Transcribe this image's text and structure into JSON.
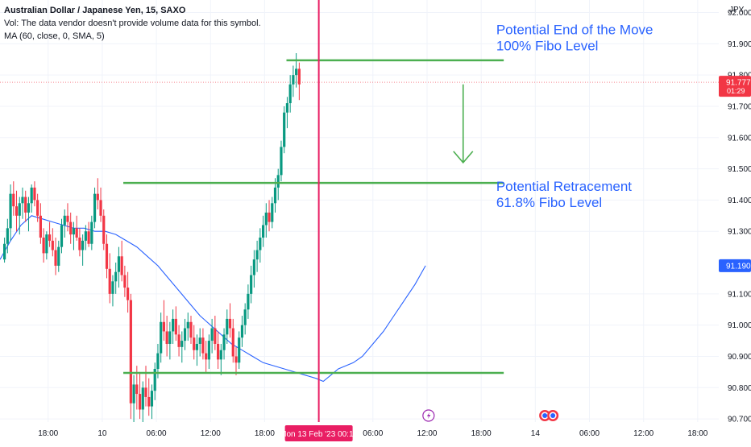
{
  "chart_data": {
    "type": "candlestick",
    "title": "Australian Dollar / Japanese Yen, 15, SAXO",
    "info_lines": [
      "Vol: The data vendor doesn't provide volume data for this symbol.",
      "MA (60, close, 0, SMA, 5)"
    ],
    "currency": "JPY",
    "y_ticks": [
      "92.000",
      "91.900",
      "91.800",
      "91.700",
      "91.600",
      "91.500",
      "91.400",
      "91.300",
      "91.100",
      "91.000",
      "90.900",
      "90.800",
      "90.700"
    ],
    "y_tick_values": [
      92.0,
      91.9,
      91.8,
      91.7,
      91.6,
      91.5,
      91.4,
      91.3,
      91.1,
      91.0,
      90.9,
      90.8,
      90.7
    ],
    "ylim": [
      90.69,
      92.04
    ],
    "x_ticks": [
      "18:00",
      "10",
      "06:00",
      "12:00",
      "18:00",
      "06:00",
      "12:00",
      "18:00",
      "14",
      "06:00",
      "12:00",
      "18:00"
    ],
    "x_tick_slots": [
      0,
      72,
      144,
      216,
      288,
      432,
      504,
      576,
      648,
      720,
      792,
      864
    ],
    "x_slot_range": [
      -64,
      892
    ],
    "crosshair_label": "Mon 13 Feb '23   00:15",
    "crosshair_slot": 360,
    "price_labels": [
      {
        "name": "last-price",
        "value": 91.777,
        "text": "91.777",
        "sub": "01:29",
        "color": "#f23645"
      },
      {
        "name": "ma-value",
        "value": 91.19,
        "text": "91.190",
        "color": "#2962ff"
      }
    ],
    "lines": [
      {
        "name": "end-of-move-line",
        "price": 91.847,
        "x0": 317,
        "x1": 606
      },
      {
        "name": "retracement-line",
        "price": 91.455,
        "x0": 100,
        "x1": 606
      },
      {
        "name": "support-line",
        "price": 90.847,
        "x0": 100,
        "x1": 606
      }
    ],
    "annotations": [
      {
        "name": "end-of-move-text",
        "lines": [
          "Potential End of the Move",
          "100% Fibo Level"
        ],
        "slot": 596,
        "price": 91.93
      },
      {
        "name": "retracement-text",
        "lines": [
          "Potential Retracement",
          "61.8% Fibo Level"
        ],
        "slot": 596,
        "price": 91.43
      }
    ],
    "arrow": {
      "slot": 552,
      "price_from": 91.77,
      "price_to": 91.52
    },
    "event_icons": [
      {
        "name": "flash-event-icon",
        "slot": 506
      },
      {
        "name": "flag-event-icon",
        "slot": 666
      }
    ],
    "series": [
      {
        "name": "",
        "kind": "candles",
        "start_slot": -58,
        "step": 4,
        "ohlc": [
          [
            91.21,
            91.28,
            91.2,
            91.26
          ],
          [
            91.26,
            91.34,
            91.23,
            91.31
          ],
          [
            91.31,
            91.45,
            91.27,
            91.42
          ],
          [
            91.42,
            91.46,
            91.35,
            91.38
          ],
          [
            91.38,
            91.43,
            91.3,
            91.35
          ],
          [
            91.35,
            91.41,
            91.29,
            91.39
          ],
          [
            91.39,
            91.44,
            91.34,
            91.41
          ],
          [
            91.41,
            91.43,
            91.33,
            91.36
          ],
          [
            91.36,
            91.41,
            91.3,
            91.39
          ],
          [
            91.39,
            91.45,
            91.36,
            91.44
          ],
          [
            91.44,
            91.46,
            91.38,
            91.4
          ],
          [
            91.4,
            91.42,
            91.33,
            91.35
          ],
          [
            91.35,
            91.39,
            91.26,
            91.28
          ],
          [
            91.28,
            91.31,
            91.2,
            91.23
          ],
          [
            91.23,
            91.3,
            91.21,
            91.29
          ],
          [
            91.29,
            91.33,
            91.25,
            91.27
          ],
          [
            91.27,
            91.31,
            91.22,
            91.24
          ],
          [
            91.24,
            91.28,
            91.16,
            91.19
          ],
          [
            91.19,
            91.27,
            91.17,
            91.25
          ],
          [
            91.25,
            91.34,
            91.23,
            91.32
          ],
          [
            91.32,
            91.37,
            91.28,
            91.35
          ],
          [
            91.35,
            91.39,
            91.3,
            91.33
          ],
          [
            91.33,
            91.36,
            91.26,
            91.29
          ],
          [
            91.29,
            91.33,
            91.24,
            91.31
          ],
          [
            91.31,
            91.35,
            91.27,
            91.28
          ],
          [
            91.28,
            91.31,
            91.22,
            91.24
          ],
          [
            91.24,
            91.29,
            91.19,
            91.27
          ],
          [
            91.27,
            91.32,
            91.24,
            91.3
          ],
          [
            91.3,
            91.33,
            91.25,
            91.26
          ],
          [
            91.26,
            91.35,
            91.24,
            91.33
          ],
          [
            91.33,
            91.44,
            91.31,
            91.42
          ],
          [
            91.42,
            91.47,
            91.37,
            91.4
          ],
          [
            91.4,
            91.44,
            91.33,
            91.35
          ],
          [
            91.35,
            91.37,
            91.24,
            91.26
          ],
          [
            91.26,
            91.29,
            91.15,
            91.18
          ],
          [
            91.18,
            91.23,
            91.07,
            91.1
          ],
          [
            91.1,
            91.16,
            91.06,
            91.14
          ],
          [
            91.14,
            91.2,
            91.1,
            91.17
          ],
          [
            91.17,
            91.25,
            91.12,
            91.22
          ],
          [
            91.22,
            91.27,
            91.14,
            91.16
          ],
          [
            91.16,
            91.19,
            91.09,
            91.12
          ],
          [
            91.12,
            91.17,
            91.04,
            91.08
          ],
          [
            91.08,
            91.1,
            90.7,
            90.75
          ],
          [
            90.75,
            90.84,
            90.68,
            90.81
          ],
          [
            90.81,
            90.87,
            90.73,
            90.78
          ],
          [
            90.78,
            90.85,
            90.7,
            90.73
          ],
          [
            90.73,
            90.82,
            90.69,
            90.8
          ],
          [
            90.8,
            90.87,
            90.74,
            90.77
          ],
          [
            90.77,
            90.83,
            90.71,
            90.74
          ],
          [
            90.74,
            90.81,
            90.7,
            90.79
          ],
          [
            90.79,
            90.88,
            90.76,
            90.86
          ],
          [
            90.86,
            90.94,
            90.83,
            90.91
          ],
          [
            90.91,
            91.04,
            90.88,
            91.01
          ],
          [
            91.01,
            91.08,
            90.95,
            90.98
          ],
          [
            90.98,
            91.03,
            90.9,
            90.94
          ],
          [
            90.94,
            91.01,
            90.89,
            90.98
          ],
          [
            90.98,
            91.05,
            90.94,
            91.02
          ],
          [
            91.02,
            91.06,
            90.95,
            90.97
          ],
          [
            90.97,
            91.0,
            90.9,
            90.93
          ],
          [
            90.93,
            90.98,
            90.88,
            90.95
          ],
          [
            90.95,
            91.02,
            90.92,
            90.99
          ],
          [
            90.99,
            91.04,
            90.95,
            91.01
          ],
          [
            91.01,
            91.03,
            90.94,
            90.96
          ],
          [
            90.96,
            91.0,
            90.89,
            90.92
          ],
          [
            90.92,
            90.97,
            90.87,
            90.94
          ],
          [
            90.94,
            90.99,
            90.9,
            90.96
          ],
          [
            90.96,
            90.99,
            90.89,
            90.91
          ],
          [
            90.91,
            90.95,
            90.85,
            90.89
          ],
          [
            90.89,
            90.97,
            90.86,
            90.95
          ],
          [
            90.95,
            91.02,
            90.91,
            90.99
          ],
          [
            90.99,
            91.03,
            90.92,
            90.94
          ],
          [
            90.94,
            90.98,
            90.86,
            90.89
          ],
          [
            90.89,
            90.94,
            90.84,
            90.92
          ],
          [
            90.92,
            90.99,
            90.89,
            90.97
          ],
          [
            90.97,
            91.05,
            90.94,
            91.02
          ],
          [
            91.02,
            91.07,
            90.96,
            90.99
          ],
          [
            90.99,
            91.02,
            90.88,
            90.9
          ],
          [
            90.9,
            90.93,
            90.84,
            90.88
          ],
          [
            90.88,
            90.98,
            90.86,
            90.96
          ],
          [
            90.96,
            91.03,
            90.93,
            91.0
          ],
          [
            91.0,
            91.07,
            90.97,
            91.05
          ],
          [
            91.05,
            91.13,
            91.02,
            91.1
          ],
          [
            91.1,
            91.19,
            91.07,
            91.16
          ],
          [
            91.16,
            91.24,
            91.12,
            91.21
          ],
          [
            91.21,
            91.27,
            91.17,
            91.24
          ],
          [
            91.24,
            91.31,
            91.2,
            91.28
          ],
          [
            91.28,
            91.35,
            91.25,
            91.32
          ],
          [
            91.32,
            91.39,
            91.28,
            91.36
          ],
          [
            91.36,
            91.4,
            91.3,
            91.33
          ],
          [
            91.33,
            91.41,
            91.31,
            91.39
          ],
          [
            91.39,
            91.47,
            91.36,
            91.44
          ],
          [
            91.44,
            91.5,
            91.4,
            91.48
          ],
          [
            91.48,
            91.59,
            91.46,
            91.57
          ],
          [
            91.57,
            91.7,
            91.55,
            91.68
          ],
          [
            91.68,
            91.73,
            91.63,
            91.71
          ],
          [
            91.71,
            91.8,
            91.68,
            91.77
          ],
          [
            91.77,
            91.83,
            91.73,
            91.8
          ],
          [
            91.8,
            91.87,
            91.76,
            91.82
          ],
          [
            91.82,
            91.84,
            91.72,
            91.77
          ]
        ]
      },
      {
        "name": "MA (60, close, 0, SMA, 5)",
        "kind": "line",
        "color": "#2962ff",
        "points": [
          [
            -64,
            91.21
          ],
          [
            -50,
            91.27
          ],
          [
            -36,
            91.32
          ],
          [
            -22,
            91.35
          ],
          [
            -8,
            91.34
          ],
          [
            6,
            91.33
          ],
          [
            20,
            91.32
          ],
          [
            34,
            91.31
          ],
          [
            48,
            91.31
          ],
          [
            62,
            91.3
          ],
          [
            76,
            91.3
          ],
          [
            90,
            91.29
          ],
          [
            104,
            91.27
          ],
          [
            118,
            91.25
          ],
          [
            132,
            91.22
          ],
          [
            146,
            91.19
          ],
          [
            160,
            91.15
          ],
          [
            174,
            91.11
          ],
          [
            188,
            91.07
          ],
          [
            202,
            91.03
          ],
          [
            216,
            91.0
          ],
          [
            230,
            90.97
          ],
          [
            244,
            90.94
          ],
          [
            258,
            90.92
          ],
          [
            272,
            90.9
          ],
          [
            286,
            90.88
          ],
          [
            300,
            90.87
          ],
          [
            314,
            90.86
          ],
          [
            328,
            90.85
          ],
          [
            342,
            90.84
          ],
          [
            356,
            90.83
          ],
          [
            366,
            90.82
          ],
          [
            376,
            90.84
          ],
          [
            386,
            90.86
          ],
          [
            396,
            90.87
          ],
          [
            406,
            90.88
          ],
          [
            418,
            90.9
          ],
          [
            432,
            90.94
          ],
          [
            446,
            90.98
          ],
          [
            460,
            91.03
          ],
          [
            474,
            91.08
          ],
          [
            488,
            91.13
          ],
          [
            502,
            91.19
          ]
        ]
      }
    ]
  }
}
